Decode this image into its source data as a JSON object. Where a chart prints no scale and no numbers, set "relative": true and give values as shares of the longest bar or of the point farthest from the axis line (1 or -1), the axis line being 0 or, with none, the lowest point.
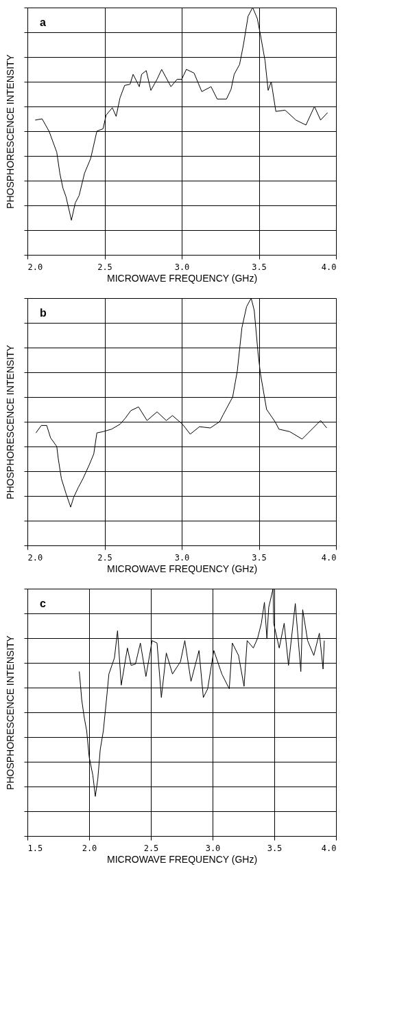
{
  "chart_data": [
    {
      "type": "line",
      "relative": true,
      "xlabel": "MICROWAVE  FREQUENCY  (GHz)",
      "ylabel": "PHOSPHORESCENCE  INTENSITY",
      "annotations": [
        "a"
      ],
      "grid": true,
      "line_style": "solid",
      "xlim": [
        2.0,
        4.0
      ],
      "xticks": [
        {
          "value": 2.0,
          "label": "2.0"
        },
        {
          "value": 2.5,
          "label": "2.5"
        },
        {
          "value": 3.0,
          "label": "3.0"
        },
        {
          "value": 3.5,
          "label": "3.5"
        },
        {
          "value": 4.0,
          "label": "4.0"
        }
      ],
      "series": [
        {
          "color": "#000000",
          "x": [
            2.05,
            2.095,
            2.14,
            2.19,
            2.21,
            2.23,
            2.25,
            2.285,
            2.31,
            2.335,
            2.37,
            2.41,
            2.45,
            2.49,
            2.51,
            2.55,
            2.575,
            2.6,
            2.63,
            2.665,
            2.685,
            2.725,
            2.74,
            2.77,
            2.8,
            2.84,
            2.87,
            2.93,
            2.97,
            3.0,
            3.03,
            3.08,
            3.13,
            3.19,
            3.23,
            3.29,
            3.32,
            3.34,
            3.375,
            3.4,
            3.43,
            3.455,
            3.46,
            3.49,
            3.51,
            3.54,
            3.56,
            3.58,
            3.61,
            3.67,
            3.74,
            3.805,
            3.86,
            3.9,
            3.945
          ],
          "values": [
            0.545,
            0.55,
            0.5,
            0.415,
            0.33,
            0.27,
            0.235,
            0.14,
            0.21,
            0.24,
            0.33,
            0.39,
            0.5,
            0.51,
            0.565,
            0.595,
            0.56,
            0.635,
            0.685,
            0.69,
            0.73,
            0.68,
            0.73,
            0.745,
            0.665,
            0.71,
            0.75,
            0.68,
            0.71,
            0.71,
            0.75,
            0.735,
            0.66,
            0.68,
            0.63,
            0.63,
            0.67,
            0.73,
            0.77,
            0.85,
            0.965,
            0.995,
            1.0,
            0.955,
            0.89,
            0.785,
            0.665,
            0.7,
            0.58,
            0.585,
            0.545,
            0.525,
            0.6,
            0.545,
            0.575
          ]
        }
      ]
    },
    {
      "type": "line",
      "relative": true,
      "xlabel": "MICROWAVE  FREQUENCY  (GHz)",
      "ylabel": "PHOSPHORESCENCE  INTENSITY",
      "annotations": [
        "b"
      ],
      "grid": true,
      "line_style": "solid",
      "xlim": [
        2.0,
        4.0
      ],
      "xticks": [
        {
          "value": 2.0,
          "label": "2.0"
        },
        {
          "value": 2.5,
          "label": "2.5"
        },
        {
          "value": 3.0,
          "label": "3.0"
        },
        {
          "value": 3.5,
          "label": "3.5"
        },
        {
          "value": 4.0,
          "label": "4.0"
        }
      ],
      "series": [
        {
          "color": "#000000",
          "x": [
            2.055,
            2.09,
            2.125,
            2.15,
            2.19,
            2.2,
            2.22,
            2.25,
            2.28,
            2.3,
            2.33,
            2.36,
            2.4,
            2.43,
            2.45,
            2.49,
            2.545,
            2.6,
            2.635,
            2.67,
            2.72,
            2.775,
            2.84,
            2.9,
            2.94,
            3.005,
            3.055,
            3.115,
            3.185,
            3.245,
            3.27,
            3.33,
            3.36,
            3.39,
            3.42,
            3.45,
            3.47,
            3.495,
            3.51,
            3.55,
            3.605,
            3.63,
            3.7,
            3.78,
            3.82,
            3.9,
            3.94
          ],
          "values": [
            0.455,
            0.485,
            0.485,
            0.435,
            0.4,
            0.35,
            0.27,
            0.21,
            0.155,
            0.195,
            0.235,
            0.27,
            0.325,
            0.37,
            0.455,
            0.46,
            0.47,
            0.49,
            0.515,
            0.545,
            0.56,
            0.505,
            0.54,
            0.505,
            0.525,
            0.49,
            0.45,
            0.48,
            0.475,
            0.5,
            0.53,
            0.6,
            0.705,
            0.88,
            0.965,
            1.0,
            0.95,
            0.775,
            0.695,
            0.55,
            0.5,
            0.47,
            0.46,
            0.43,
            0.455,
            0.505,
            0.475
          ]
        }
      ]
    },
    {
      "type": "line",
      "relative": true,
      "xlabel": "MICROWAVE  FREQUENCY  (GHz)",
      "ylabel": "PHOSPHORESCENCE  INTENSITY",
      "annotations": [
        "c"
      ],
      "grid": true,
      "line_style": "solid",
      "xlim": [
        1.5,
        4.0
      ],
      "xticks": [
        {
          "value": 1.5,
          "label": "1.5"
        },
        {
          "value": 2.0,
          "label": "2.0"
        },
        {
          "value": 2.5,
          "label": "2.5"
        },
        {
          "value": 3.0,
          "label": "3.0"
        },
        {
          "value": 3.5,
          "label": "3.5"
        },
        {
          "value": 4.0,
          "label": "4.0"
        }
      ],
      "series": [
        {
          "color": "#000000",
          "x": [
            1.92,
            1.93,
            1.94,
            1.96,
            1.98,
            2.0,
            2.03,
            2.05,
            2.07,
            2.09,
            2.115,
            2.14,
            2.16,
            2.205,
            2.23,
            2.26,
            2.31,
            2.34,
            2.375,
            2.415,
            2.46,
            2.51,
            2.55,
            2.585,
            2.625,
            2.675,
            2.74,
            2.775,
            2.825,
            2.89,
            2.925,
            2.96,
            3.01,
            3.075,
            3.135,
            3.16,
            3.21,
            3.255,
            3.28,
            3.33,
            3.365,
            3.395,
            3.42,
            3.44,
            3.455,
            3.49,
            3.495,
            3.54,
            3.58,
            3.615,
            3.67,
            3.715,
            3.73,
            3.77,
            3.82,
            3.865,
            3.895,
            3.905
          ],
          "values": [
            0.665,
            0.61,
            0.55,
            0.48,
            0.425,
            0.32,
            0.245,
            0.16,
            0.23,
            0.35,
            0.425,
            0.55,
            0.655,
            0.72,
            0.83,
            0.61,
            0.76,
            0.69,
            0.695,
            0.78,
            0.645,
            0.79,
            0.78,
            0.56,
            0.74,
            0.655,
            0.705,
            0.79,
            0.625,
            0.75,
            0.56,
            0.595,
            0.75,
            0.655,
            0.595,
            0.78,
            0.73,
            0.605,
            0.79,
            0.76,
            0.8,
            0.86,
            0.945,
            0.8,
            0.925,
            1.0,
            0.86,
            0.76,
            0.86,
            0.69,
            0.94,
            0.665,
            0.915,
            0.79,
            0.73,
            0.82,
            0.675,
            0.79
          ]
        }
      ]
    }
  ]
}
